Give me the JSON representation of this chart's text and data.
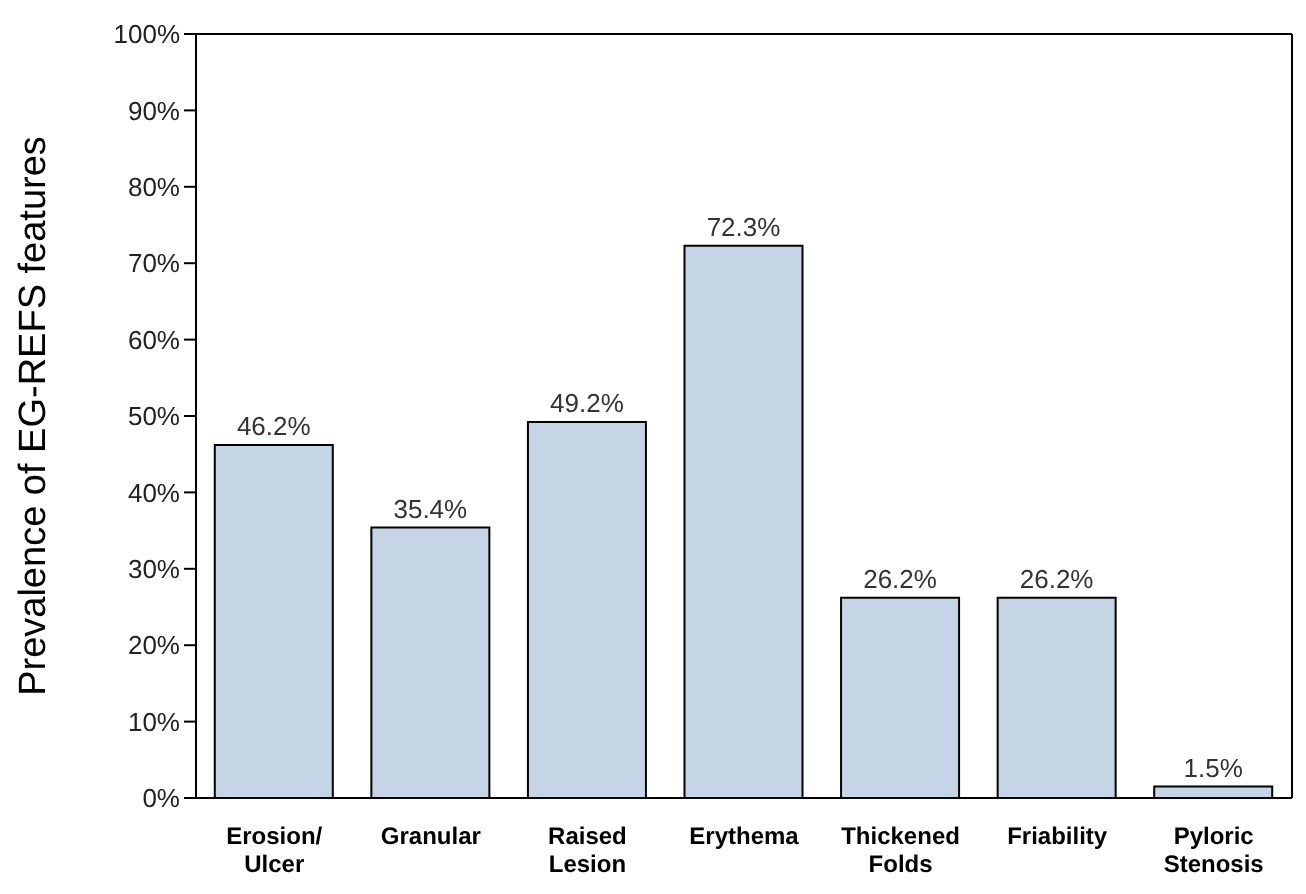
{
  "chart_data": {
    "type": "bar",
    "ylabel": "Prevalence of EG-REFS features",
    "categories": [
      "Erosion/ Ulcer",
      "Granular",
      "Raised Lesion",
      "Erythema",
      "Thickened Folds",
      "Friability",
      "Pyloric Stenosis"
    ],
    "values": [
      46.2,
      35.4,
      49.2,
      72.3,
      26.2,
      26.2,
      1.5
    ],
    "value_labels": [
      "46.2%",
      "35.4%",
      "49.2%",
      "72.3%",
      "26.2%",
      "26.2%",
      "1.5%"
    ],
    "color": "#c5d5e5",
    "ylim": [
      0,
      100
    ],
    "yticks": [
      {
        "value": 0,
        "label": "0%"
      },
      {
        "value": 10,
        "label": "10%"
      },
      {
        "value": 20,
        "label": "20%"
      },
      {
        "value": 30,
        "label": "30%"
      },
      {
        "value": 40,
        "label": "40%"
      },
      {
        "value": 50,
        "label": "50%"
      },
      {
        "value": 60,
        "label": "60%"
      },
      {
        "value": 70,
        "label": "70%"
      },
      {
        "value": 80,
        "label": "80%"
      },
      {
        "value": 90,
        "label": "90%"
      },
      {
        "value": 100,
        "label": "100%"
      }
    ],
    "grid": false
  }
}
